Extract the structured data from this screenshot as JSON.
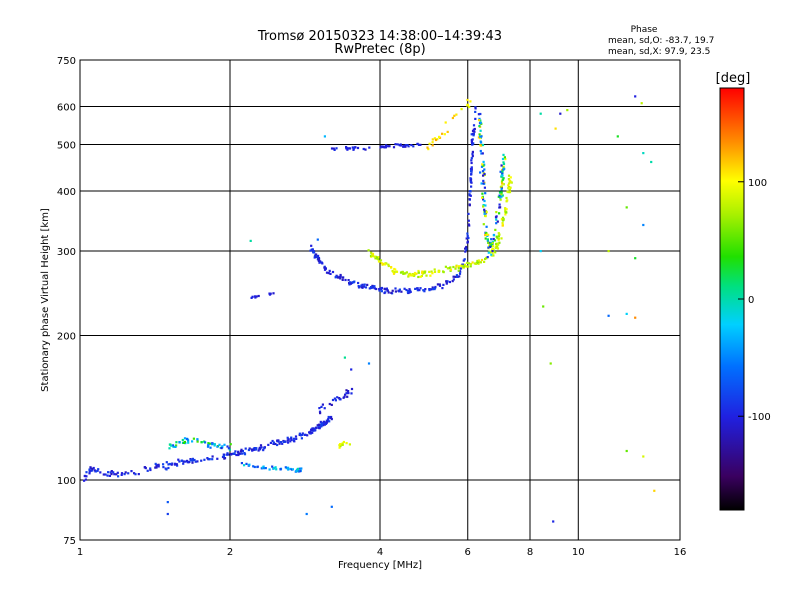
{
  "chart_data": {
    "type": "scatter",
    "title": "Tromsø 20150323 14:38:00–14:39:43",
    "subtitle": "RwPretec (8p)",
    "xlabel": "Frequency [MHz]",
    "ylabel": "Stationary phase Virtual Height [km]",
    "x_scale": "log",
    "y_scale": "log",
    "xlim": [
      1,
      16
    ],
    "ylim": [
      75,
      750
    ],
    "x_ticks": [
      {
        "value": 1,
        "label": "1"
      },
      {
        "value": 2,
        "label": "2"
      },
      {
        "value": 4,
        "label": "4"
      },
      {
        "value": 6,
        "label": "6"
      },
      {
        "value": 8,
        "label": "8"
      },
      {
        "value": 10,
        "label": "10"
      },
      {
        "value": 16,
        "label": "16"
      }
    ],
    "y_ticks": [
      {
        "value": 75,
        "label": "75"
      },
      {
        "value": 100,
        "label": "100"
      },
      {
        "value": 200,
        "label": "200"
      },
      {
        "value": 300,
        "label": "300"
      },
      {
        "value": 400,
        "label": "400"
      },
      {
        "value": 500,
        "label": "500"
      },
      {
        "value": 600,
        "label": "600"
      },
      {
        "value": 750,
        "label": "750"
      }
    ],
    "grid": true,
    "stats": {
      "header": "Phase",
      "line_o": "mean, sd,O: -83.7, 19.7",
      "line_x": "mean, sd,X:  97.9, 23.5"
    },
    "colorbar": {
      "label": "[deg]",
      "range": [
        -180,
        180
      ],
      "ticks": [
        {
          "value": 100,
          "label": "100"
        },
        {
          "value": 0,
          "label": "0"
        },
        {
          "value": -100,
          "label": "-100"
        }
      ]
    },
    "series": [
      {
        "traces": [
          {
            "pts": [
              [
                1.02,
                101
              ],
              [
                1.05,
                106
              ],
              [
                1.1,
                104
              ],
              [
                1.2,
                103
              ],
              [
                1.3,
                104
              ],
              [
                1.4,
                107
              ],
              [
                1.5,
                107
              ],
              [
                1.6,
                109
              ],
              [
                1.7,
                110
              ],
              [
                1.8,
                111
              ],
              [
                1.9,
                112
              ],
              [
                2.0,
                113
              ],
              [
                2.1,
                114
              ],
              [
                2.2,
                115
              ],
              [
                2.3,
                117
              ],
              [
                2.4,
                118
              ],
              [
                2.5,
                120
              ],
              [
                2.6,
                121
              ],
              [
                2.7,
                122
              ],
              [
                2.8,
                124
              ],
              [
                2.9,
                126
              ],
              [
                3.0,
                129
              ],
              [
                3.1,
                132
              ],
              [
                3.2,
                135
              ]
            ],
            "n": 240,
            "jx": 0.012,
            "jy": 0.022,
            "phase": [
              -115,
              -80
            ]
          },
          {
            "pts": [
              [
                1.5,
                117
              ],
              [
                1.6,
                120
              ],
              [
                1.7,
                121
              ],
              [
                1.8,
                119
              ],
              [
                1.9,
                118
              ],
              [
                2.0,
                117
              ]
            ],
            "n": 55,
            "jx": 0.012,
            "jy": 0.02,
            "phase": [
              -100,
              60
            ]
          },
          {
            "pts": [
              [
                2.1,
                108
              ],
              [
                2.3,
                106
              ],
              [
                2.5,
                106
              ],
              [
                2.7,
                105
              ],
              [
                2.8,
                105
              ]
            ],
            "n": 45,
            "jx": 0.01,
            "jy": 0.012,
            "phase": [
              -90,
              0
            ]
          },
          {
            "pts": [
              [
                3.0,
                140
              ],
              [
                3.2,
                145
              ],
              [
                3.4,
                150
              ],
              [
                3.5,
                152
              ]
            ],
            "n": 25,
            "jx": 0.015,
            "jy": 0.03,
            "phase": [
              -120,
              -90
            ]
          },
          {
            "pts": [
              [
                3.3,
                117
              ],
              [
                3.4,
                120
              ],
              [
                3.5,
                118
              ]
            ],
            "n": 10,
            "jx": 0.008,
            "jy": 0.015,
            "phase": [
              70,
              110
            ]
          },
          {
            "pts": [
              [
                2.2,
                240
              ],
              [
                2.35,
                243
              ],
              [
                2.45,
                245
              ]
            ],
            "n": 10,
            "jx": 0.004,
            "jy": 0.006,
            "phase": [
              -110,
              -90
            ]
          },
          {
            "pts": [
              [
                2.9,
                305
              ],
              [
                3.0,
                290
              ],
              [
                3.1,
                275
              ],
              [
                3.3,
                265
              ],
              [
                3.5,
                258
              ],
              [
                3.8,
                252
              ],
              [
                4.1,
                248
              ],
              [
                4.5,
                248
              ],
              [
                5.0,
                250
              ],
              [
                5.4,
                256
              ],
              [
                5.7,
                265
              ],
              [
                5.9,
                285
              ],
              [
                6.0,
                320
              ],
              [
                6.05,
                380
              ],
              [
                6.1,
                440
              ],
              [
                6.15,
                520
              ],
              [
                6.2,
                600
              ]
            ],
            "n": 230,
            "jx": 0.008,
            "jy": 0.02,
            "phase": [
              -115,
              -80
            ]
          },
          {
            "pts": [
              [
                3.8,
                300
              ],
              [
                4.0,
                285
              ],
              [
                4.3,
                272
              ],
              [
                4.6,
                268
              ],
              [
                5.0,
                270
              ],
              [
                5.5,
                275
              ],
              [
                6.0,
                280
              ],
              [
                6.5,
                288
              ],
              [
                6.8,
                300
              ],
              [
                7.0,
                330
              ],
              [
                7.2,
                380
              ],
              [
                7.3,
                430
              ]
            ],
            "n": 200,
            "jx": 0.012,
            "jy": 0.02,
            "phase": [
              60,
              110
            ]
          },
          {
            "pts": [
              [
                6.3,
                580
              ],
              [
                6.4,
                500
              ],
              [
                6.45,
                420
              ],
              [
                6.5,
                340
              ],
              [
                6.6,
                300
              ],
              [
                6.8,
                320
              ],
              [
                7.0,
                400
              ],
              [
                7.1,
                480
              ]
            ],
            "n": 160,
            "jx": 0.015,
            "jy": 0.04,
            "phase": [
              -120,
              120
            ]
          },
          {
            "pts": [
              [
                3.2,
                490
              ],
              [
                3.6,
                492
              ],
              [
                4.0,
                495
              ],
              [
                4.4,
                497
              ],
              [
                4.8,
                500
              ]
            ],
            "n": 55,
            "jx": 0.01,
            "jy": 0.012,
            "phase": [
              -110,
              -90
            ]
          },
          {
            "pts": [
              [
                5.0,
                500
              ],
              [
                5.3,
                520
              ],
              [
                5.6,
                570
              ],
              [
                5.9,
                600
              ],
              [
                6.1,
                620
              ]
            ],
            "n": 25,
            "jx": 0.02,
            "jy": 0.04,
            "phase": [
              90,
              130
            ]
          },
          {
            "pts": [
              [
                3.1,
                520
              ],
              [
                2.2,
                315
              ],
              [
                3.0,
                317
              ],
              [
                3.2,
                88
              ],
              [
                2.85,
                85
              ],
              [
                1.5,
                90
              ],
              [
                1.5,
                85
              ],
              [
                3.4,
                180
              ],
              [
                3.8,
                175
              ],
              [
                3.5,
                170
              ]
            ],
            "n": 10,
            "jx": 0.005,
            "jy": 0.005,
            "phase": [
              -100,
              20
            ]
          },
          {
            "pts": [
              [
                8.5,
                230
              ],
              [
                8.8,
                175
              ],
              [
                8.9,
                82
              ],
              [
                8.4,
                300
              ],
              [
                8.4,
                580
              ],
              [
                9.2,
                580
              ],
              [
                9.5,
                590
              ],
              [
                12.0,
                520
              ],
              [
                12.5,
                370
              ],
              [
                13.5,
                340
              ],
              [
                12.5,
                222
              ],
              [
                13.0,
                218
              ],
              [
                13.0,
                290
              ],
              [
                11.5,
                300
              ],
              [
                11.5,
                220
              ],
              [
                13.0,
                630
              ],
              [
                13.4,
                610
              ],
              [
                13.5,
                480
              ],
              [
                14.0,
                460
              ],
              [
                14.2,
                95
              ],
              [
                13.5,
                112
              ],
              [
                12.5,
                115
              ],
              [
                9.0,
                540
              ]
            ],
            "n": 23,
            "jx": 0.004,
            "jy": 0.004,
            "phase": [
              -120,
              140
            ]
          }
        ]
      }
    ]
  }
}
